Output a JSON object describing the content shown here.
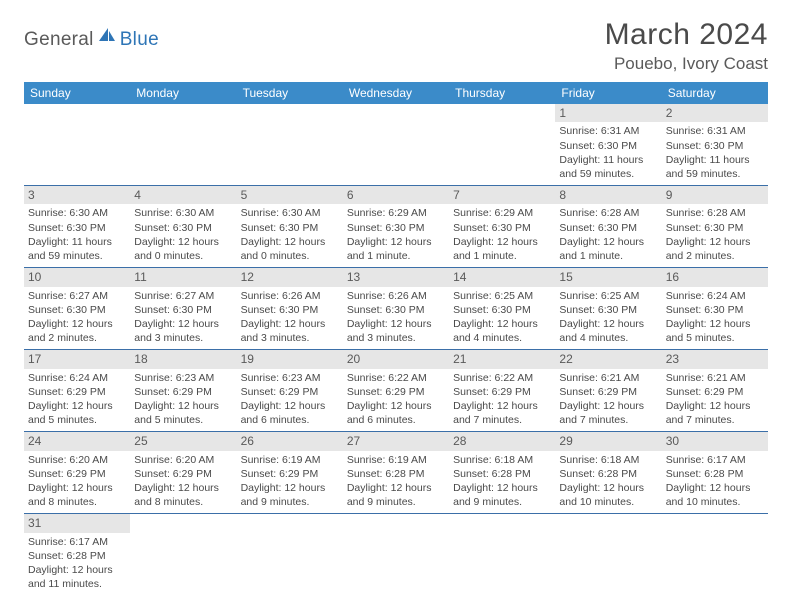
{
  "logo": {
    "general": "General",
    "blue": "Blue"
  },
  "title": "March 2024",
  "location": "Pouebo, Ivory Coast",
  "colors": {
    "header_bg": "#3b8bc9",
    "header_fg": "#ffffff",
    "daynum_bg": "#e6e6e6",
    "cell_border": "#3b6fa8",
    "text": "#4a4a4a",
    "logo_gray": "#5a5a5a",
    "logo_blue": "#2e75b6"
  },
  "weekdays": [
    "Sunday",
    "Monday",
    "Tuesday",
    "Wednesday",
    "Thursday",
    "Friday",
    "Saturday"
  ],
  "weeks": [
    [
      null,
      null,
      null,
      null,
      null,
      {
        "n": "1",
        "sr": "Sunrise: 6:31 AM",
        "ss": "Sunset: 6:30 PM",
        "dl": "Daylight: 11 hours and 59 minutes."
      },
      {
        "n": "2",
        "sr": "Sunrise: 6:31 AM",
        "ss": "Sunset: 6:30 PM",
        "dl": "Daylight: 11 hours and 59 minutes."
      }
    ],
    [
      {
        "n": "3",
        "sr": "Sunrise: 6:30 AM",
        "ss": "Sunset: 6:30 PM",
        "dl": "Daylight: 11 hours and 59 minutes."
      },
      {
        "n": "4",
        "sr": "Sunrise: 6:30 AM",
        "ss": "Sunset: 6:30 PM",
        "dl": "Daylight: 12 hours and 0 minutes."
      },
      {
        "n": "5",
        "sr": "Sunrise: 6:30 AM",
        "ss": "Sunset: 6:30 PM",
        "dl": "Daylight: 12 hours and 0 minutes."
      },
      {
        "n": "6",
        "sr": "Sunrise: 6:29 AM",
        "ss": "Sunset: 6:30 PM",
        "dl": "Daylight: 12 hours and 1 minute."
      },
      {
        "n": "7",
        "sr": "Sunrise: 6:29 AM",
        "ss": "Sunset: 6:30 PM",
        "dl": "Daylight: 12 hours and 1 minute."
      },
      {
        "n": "8",
        "sr": "Sunrise: 6:28 AM",
        "ss": "Sunset: 6:30 PM",
        "dl": "Daylight: 12 hours and 1 minute."
      },
      {
        "n": "9",
        "sr": "Sunrise: 6:28 AM",
        "ss": "Sunset: 6:30 PM",
        "dl": "Daylight: 12 hours and 2 minutes."
      }
    ],
    [
      {
        "n": "10",
        "sr": "Sunrise: 6:27 AM",
        "ss": "Sunset: 6:30 PM",
        "dl": "Daylight: 12 hours and 2 minutes."
      },
      {
        "n": "11",
        "sr": "Sunrise: 6:27 AM",
        "ss": "Sunset: 6:30 PM",
        "dl": "Daylight: 12 hours and 3 minutes."
      },
      {
        "n": "12",
        "sr": "Sunrise: 6:26 AM",
        "ss": "Sunset: 6:30 PM",
        "dl": "Daylight: 12 hours and 3 minutes."
      },
      {
        "n": "13",
        "sr": "Sunrise: 6:26 AM",
        "ss": "Sunset: 6:30 PM",
        "dl": "Daylight: 12 hours and 3 minutes."
      },
      {
        "n": "14",
        "sr": "Sunrise: 6:25 AM",
        "ss": "Sunset: 6:30 PM",
        "dl": "Daylight: 12 hours and 4 minutes."
      },
      {
        "n": "15",
        "sr": "Sunrise: 6:25 AM",
        "ss": "Sunset: 6:30 PM",
        "dl": "Daylight: 12 hours and 4 minutes."
      },
      {
        "n": "16",
        "sr": "Sunrise: 6:24 AM",
        "ss": "Sunset: 6:30 PM",
        "dl": "Daylight: 12 hours and 5 minutes."
      }
    ],
    [
      {
        "n": "17",
        "sr": "Sunrise: 6:24 AM",
        "ss": "Sunset: 6:29 PM",
        "dl": "Daylight: 12 hours and 5 minutes."
      },
      {
        "n": "18",
        "sr": "Sunrise: 6:23 AM",
        "ss": "Sunset: 6:29 PM",
        "dl": "Daylight: 12 hours and 5 minutes."
      },
      {
        "n": "19",
        "sr": "Sunrise: 6:23 AM",
        "ss": "Sunset: 6:29 PM",
        "dl": "Daylight: 12 hours and 6 minutes."
      },
      {
        "n": "20",
        "sr": "Sunrise: 6:22 AM",
        "ss": "Sunset: 6:29 PM",
        "dl": "Daylight: 12 hours and 6 minutes."
      },
      {
        "n": "21",
        "sr": "Sunrise: 6:22 AM",
        "ss": "Sunset: 6:29 PM",
        "dl": "Daylight: 12 hours and 7 minutes."
      },
      {
        "n": "22",
        "sr": "Sunrise: 6:21 AM",
        "ss": "Sunset: 6:29 PM",
        "dl": "Daylight: 12 hours and 7 minutes."
      },
      {
        "n": "23",
        "sr": "Sunrise: 6:21 AM",
        "ss": "Sunset: 6:29 PM",
        "dl": "Daylight: 12 hours and 7 minutes."
      }
    ],
    [
      {
        "n": "24",
        "sr": "Sunrise: 6:20 AM",
        "ss": "Sunset: 6:29 PM",
        "dl": "Daylight: 12 hours and 8 minutes."
      },
      {
        "n": "25",
        "sr": "Sunrise: 6:20 AM",
        "ss": "Sunset: 6:29 PM",
        "dl": "Daylight: 12 hours and 8 minutes."
      },
      {
        "n": "26",
        "sr": "Sunrise: 6:19 AM",
        "ss": "Sunset: 6:29 PM",
        "dl": "Daylight: 12 hours and 9 minutes."
      },
      {
        "n": "27",
        "sr": "Sunrise: 6:19 AM",
        "ss": "Sunset: 6:28 PM",
        "dl": "Daylight: 12 hours and 9 minutes."
      },
      {
        "n": "28",
        "sr": "Sunrise: 6:18 AM",
        "ss": "Sunset: 6:28 PM",
        "dl": "Daylight: 12 hours and 9 minutes."
      },
      {
        "n": "29",
        "sr": "Sunrise: 6:18 AM",
        "ss": "Sunset: 6:28 PM",
        "dl": "Daylight: 12 hours and 10 minutes."
      },
      {
        "n": "30",
        "sr": "Sunrise: 6:17 AM",
        "ss": "Sunset: 6:28 PM",
        "dl": "Daylight: 12 hours and 10 minutes."
      }
    ],
    [
      {
        "n": "31",
        "sr": "Sunrise: 6:17 AM",
        "ss": "Sunset: 6:28 PM",
        "dl": "Daylight: 12 hours and 11 minutes."
      },
      null,
      null,
      null,
      null,
      null,
      null
    ]
  ]
}
